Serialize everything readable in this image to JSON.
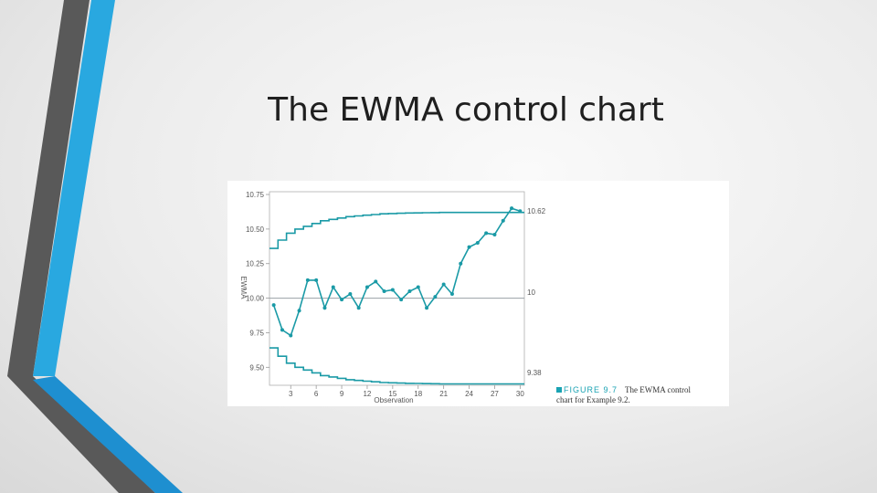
{
  "slide": {
    "title": "The EWMA control chart"
  },
  "colors": {
    "series": "#1a9aa6",
    "center_line": "#9aa0a6",
    "accent_dark": "#595959",
    "accent_blue": "#29a8e0"
  },
  "figure": {
    "caption_label": "FIGURE 9.7",
    "caption_text_1": "The EWMA control",
    "caption_text_2": "chart for Example 9.2."
  },
  "chart_data": {
    "type": "line",
    "xlabel": "Observation",
    "ylabel": "EWMA",
    "xlim": [
      0.5,
      30.5
    ],
    "ylim": [
      9.37,
      10.77
    ],
    "x_ticks": [
      3,
      6,
      9,
      12,
      15,
      18,
      21,
      24,
      27,
      30
    ],
    "y_ticks": [
      9.5,
      9.75,
      10.0,
      10.25,
      10.5,
      10.75
    ],
    "y_tick_labels": [
      "9.50",
      "9.75",
      "10.00",
      "10.25",
      "10.50",
      "10.75"
    ],
    "center_line": {
      "value": 10,
      "label": "10"
    },
    "ucl_label": "10.62",
    "lcl_label": "9.38",
    "ucl": [
      10.36,
      10.42,
      10.47,
      10.5,
      10.52,
      10.54,
      10.56,
      10.57,
      10.58,
      10.59,
      10.595,
      10.6,
      10.605,
      10.61,
      10.612,
      10.614,
      10.616,
      10.617,
      10.618,
      10.619,
      10.62,
      10.62,
      10.62,
      10.62,
      10.62,
      10.62,
      10.62,
      10.62,
      10.62,
      10.62
    ],
    "lcl": [
      9.64,
      9.58,
      9.53,
      9.5,
      9.48,
      9.46,
      9.44,
      9.43,
      9.42,
      9.41,
      9.405,
      9.4,
      9.395,
      9.39,
      9.388,
      9.386,
      9.384,
      9.383,
      9.382,
      9.381,
      9.38,
      9.38,
      9.38,
      9.38,
      9.38,
      9.38,
      9.38,
      9.38,
      9.38,
      9.38
    ],
    "series": [
      {
        "values": [
          9.95,
          9.77,
          9.73,
          9.91,
          10.13,
          10.13,
          9.93,
          10.08,
          9.99,
          10.03,
          9.93,
          10.08,
          10.12,
          10.05,
          10.06,
          9.99,
          10.05,
          10.08,
          9.93,
          10.01,
          10.1,
          10.03,
          10.25,
          10.37,
          10.4,
          10.47,
          10.46,
          10.56,
          10.65,
          10.63
        ]
      }
    ],
    "grid": false
  }
}
